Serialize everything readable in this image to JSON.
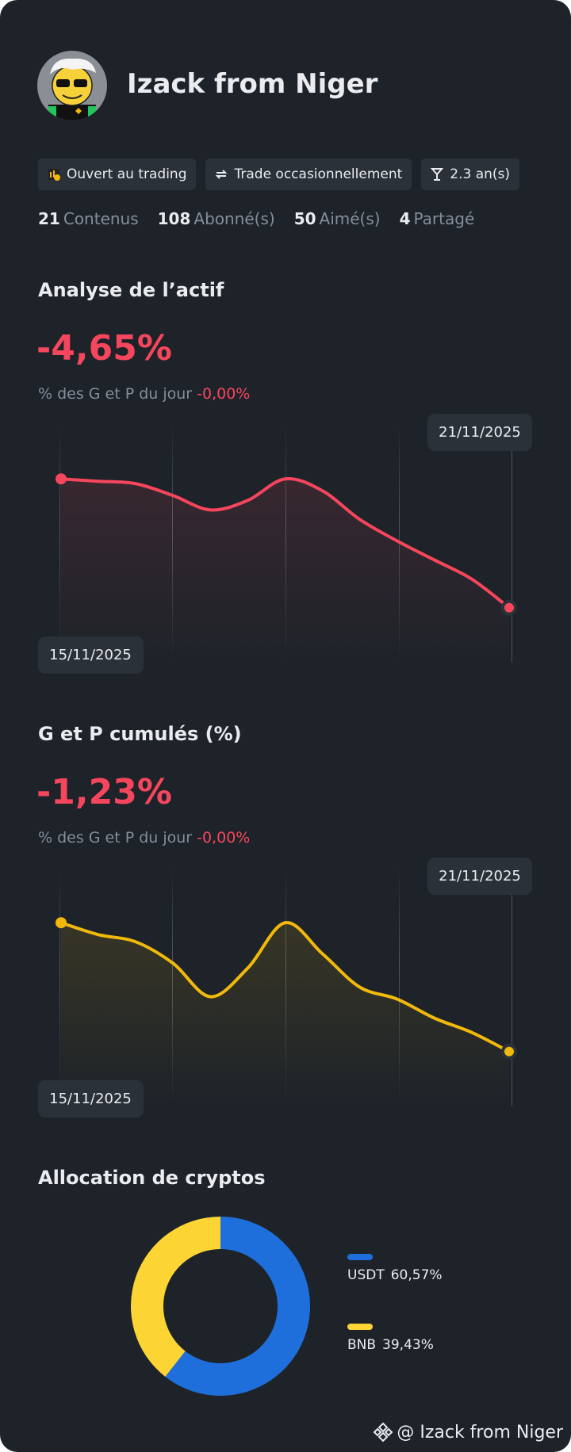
{
  "profile": {
    "name": "Izack from Niger",
    "tags": [
      "Ouvert au trading",
      "Trade occasionnellement",
      "2.3 an(s)"
    ],
    "stats": [
      {
        "value": "21",
        "label": "Contenus"
      },
      {
        "value": "108",
        "label": "Abonné(s)"
      },
      {
        "value": "50",
        "label": "Aimé(s)"
      },
      {
        "value": "4",
        "label": "Partagé"
      }
    ]
  },
  "charts": [
    {
      "type": "line",
      "title": "Analyse de l’actif",
      "headline": "-4,65%",
      "subtitle": "% des G et P du jour",
      "daily_change": "-0,00%",
      "start_date": "15/11/2025",
      "end_date": "21/11/2025",
      "color": "#f6465d",
      "ylim": [
        0,
        100
      ],
      "values": [
        77,
        76,
        75,
        70,
        64,
        68,
        77,
        72,
        60,
        51,
        43,
        35,
        23
      ]
    },
    {
      "type": "line",
      "title": "G et P cumulés (%)",
      "headline": "-1,23%",
      "subtitle": "% des G et P du jour",
      "daily_change": "-0,00%",
      "start_date": "15/11/2025",
      "end_date": "21/11/2025",
      "color": "#f0b90b",
      "ylim": [
        0,
        100
      ],
      "values": [
        77,
        72,
        69,
        60,
        46,
        58,
        77,
        64,
        50,
        45,
        37,
        31,
        23
      ]
    }
  ],
  "allocation": {
    "type": "pie",
    "title": "Allocation de cryptos",
    "categories": [
      "USDT",
      "BNB"
    ],
    "values": [
      60.57,
      39.43
    ],
    "value_labels": [
      "60,57%",
      "39,43%"
    ],
    "colors": [
      "#1e6fdb",
      "#fcd535"
    ]
  },
  "footer": {
    "handle": "@ Izack from Niger"
  }
}
